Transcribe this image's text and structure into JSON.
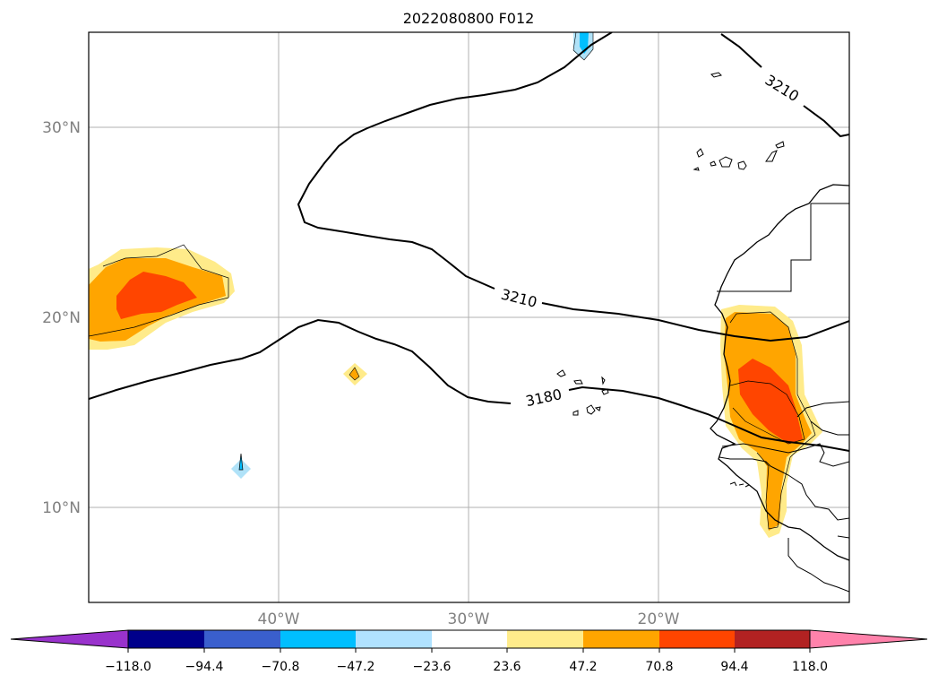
{
  "map": {
    "title": "2022080800 F012",
    "lat_labels": [
      "30°N",
      "20°N",
      "10°N"
    ],
    "lon_labels": [
      "40°W",
      "30°W",
      "20°W"
    ],
    "extent": {
      "lon": [
        -50,
        -10
      ],
      "lat": [
        5,
        35
      ]
    },
    "gridlines": true,
    "contour_labels": [
      "3210",
      "3210",
      "3180"
    ],
    "contour_levels": [
      3180,
      3210
    ],
    "fill_colors": {
      "positive_high": "#ff4500",
      "positive_mid": "#ffa500",
      "positive_low": "#ffeb8a",
      "negative_low": "#b0e2f8",
      "negative_mid": "#00bfff",
      "coastline": "#000000"
    }
  },
  "colorbar": {
    "tick_labels": [
      "−118.0",
      "−94.4",
      "−70.8",
      "−47.2",
      "−23.6",
      "23.6",
      "47.2",
      "70.8",
      "94.4",
      "118.0"
    ],
    "bin_colors": [
      "#9932cc",
      "#00008b",
      "#3a5fcd",
      "#00bfff",
      "#b0e2ff",
      "#ffffff",
      "#ffec8b",
      "#ffa500",
      "#ff4500",
      "#b22222",
      "#ff82ab"
    ],
    "extend": "both"
  }
}
